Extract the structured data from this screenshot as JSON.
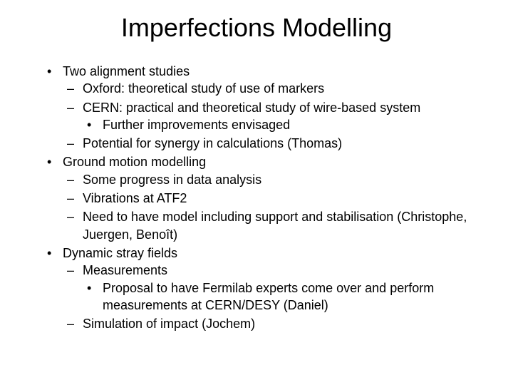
{
  "title": "Imperfections Modelling",
  "content": {
    "items": [
      {
        "text": "Two alignment studies",
        "children": [
          {
            "text": "Oxford: theoretical study of use of markers"
          },
          {
            "text": "CERN: practical and theoretical study of wire-based system",
            "children": [
              {
                "text": "Further improvements envisaged"
              }
            ]
          },
          {
            "text": "Potential for synergy in calculations (Thomas)"
          }
        ]
      },
      {
        "text": "Ground motion modelling",
        "children": [
          {
            "text": "Some progress in data analysis"
          },
          {
            "text": "Vibrations at ATF2"
          },
          {
            "text": "Need to have model including support and stabilisation (Christophe, Juergen, Benoît)"
          }
        ]
      },
      {
        "text": "Dynamic stray fields",
        "children": [
          {
            "text": "Measurements",
            "children": [
              {
                "text": "Proposal to have Fermilab experts come over and perform measurements at CERN/DESY (Daniel)"
              }
            ]
          },
          {
            "text": "Simulation of impact (Jochem)"
          }
        ]
      }
    ]
  }
}
